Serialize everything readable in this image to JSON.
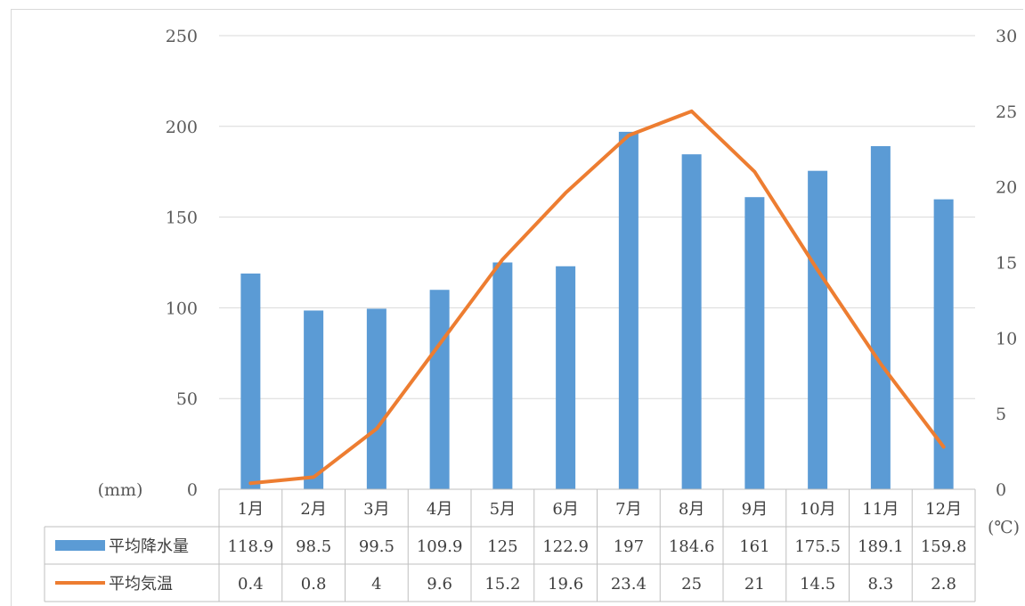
{
  "chart_data": {
    "type": "bar+line",
    "categories": [
      "1月",
      "2月",
      "3月",
      "4月",
      "5月",
      "6月",
      "7月",
      "8月",
      "9月",
      "10月",
      "11月",
      "12月"
    ],
    "series": [
      {
        "name": "平均降水量",
        "type": "bar",
        "axis": "left",
        "color": "#5b9bd5",
        "values": [
          "118.9",
          "98.5",
          "99.5",
          "109.9",
          "125",
          "122.9",
          "197",
          "184.6",
          "161",
          "175.5",
          "189.1",
          "159.8"
        ]
      },
      {
        "name": "平均気温",
        "type": "line",
        "axis": "right",
        "color": "#ed7d31",
        "values": [
          "0.4",
          "0.8",
          "4",
          "9.6",
          "15.2",
          "19.6",
          "23.4",
          "25",
          "21",
          "14.5",
          "8.3",
          "2.8"
        ]
      }
    ],
    "y_left": {
      "unit": "(mm)",
      "range": [
        0,
        250
      ],
      "ticks": [
        "0",
        "50",
        "100",
        "150",
        "200",
        "250"
      ]
    },
    "y_right": {
      "unit": "(℃)",
      "range": [
        0,
        30
      ],
      "ticks": [
        "0",
        "5",
        "10",
        "15",
        "20",
        "25",
        "30"
      ]
    },
    "grid": "horizontal",
    "legend": "data-table"
  }
}
